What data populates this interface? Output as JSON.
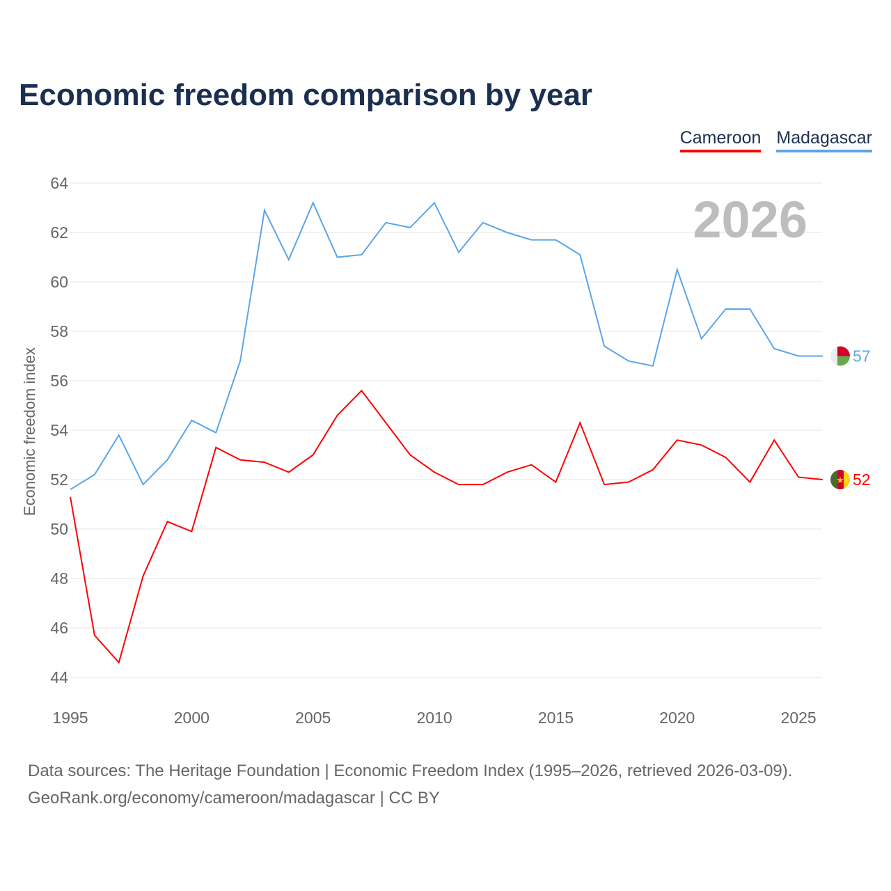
{
  "chart_data": {
    "type": "line",
    "title": "Economic freedom comparison by year",
    "xlabel": "",
    "ylabel": "Economic freedom index",
    "xlim": [
      1995,
      2026
    ],
    "ylim": [
      44,
      64
    ],
    "x_ticks": [
      1995,
      2000,
      2005,
      2010,
      2015,
      2020,
      2025
    ],
    "y_ticks": [
      44,
      46,
      48,
      50,
      52,
      54,
      56,
      58,
      60,
      62,
      64
    ],
    "grid": true,
    "legend_position": "top-right",
    "year_label": "2026",
    "x": [
      1995,
      1996,
      1997,
      1998,
      1999,
      2000,
      2001,
      2002,
      2003,
      2004,
      2005,
      2006,
      2007,
      2008,
      2009,
      2010,
      2011,
      2012,
      2013,
      2014,
      2015,
      2016,
      2017,
      2018,
      2019,
      2020,
      2021,
      2022,
      2023,
      2024,
      2025,
      2026
    ],
    "series": [
      {
        "name": "Cameroon",
        "color": "#ff0000",
        "end_label": "52",
        "values": [
          51.3,
          45.7,
          44.6,
          48.1,
          50.3,
          49.9,
          53.3,
          52.8,
          52.7,
          52.3,
          53.0,
          54.6,
          55.6,
          54.3,
          53.0,
          52.3,
          51.8,
          51.8,
          52.3,
          52.6,
          51.9,
          54.3,
          51.8,
          51.9,
          52.4,
          53.6,
          53.4,
          52.9,
          51.9,
          53.6,
          52.1,
          52.0
        ]
      },
      {
        "name": "Madagascar",
        "color": "#5aa5e8",
        "end_label": "57",
        "values": [
          51.6,
          52.2,
          53.8,
          51.8,
          52.8,
          54.4,
          53.9,
          56.8,
          62.9,
          60.9,
          63.2,
          61.0,
          61.1,
          62.4,
          62.2,
          63.2,
          61.2,
          62.4,
          62.0,
          61.7,
          61.7,
          61.1,
          57.4,
          56.8,
          56.6,
          60.5,
          57.7,
          58.9,
          58.9,
          57.3,
          57.0,
          57.0
        ]
      }
    ]
  },
  "footer": {
    "line1": "Data sources: The Heritage Foundation | Economic Freedom Index (1995–2026, retrieved 2026-03-09).",
    "line2": "GeoRank.org/economy/cameroon/madagascar | CC BY"
  }
}
